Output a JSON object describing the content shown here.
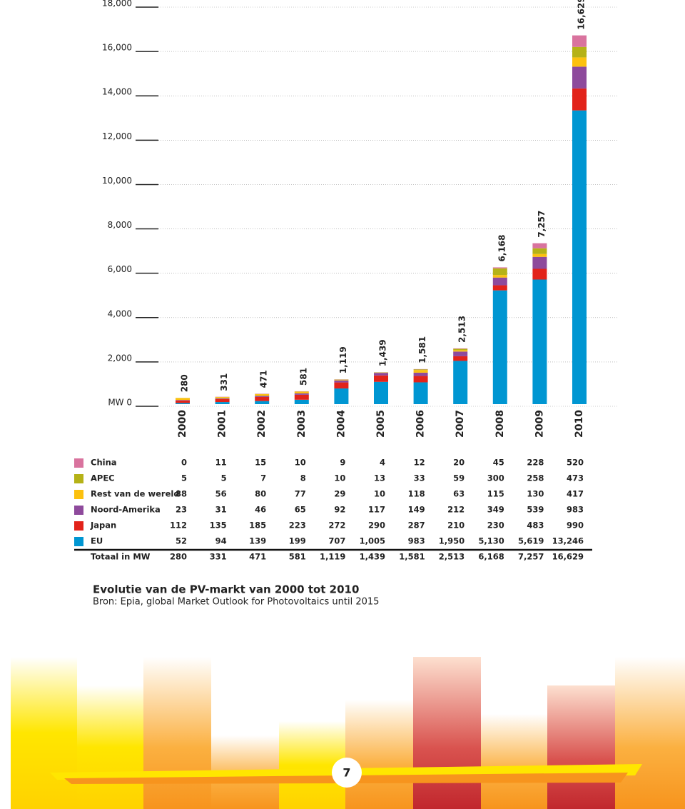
{
  "chart_data": {
    "type": "stacked-bar",
    "title": "Evolutie van de PV-markt van 2000 tot 2010",
    "subtitle": "Bron: Epia, global Market Outlook for Photovoltaics until 2015",
    "categories": [
      "2000",
      "2001",
      "2002",
      "2003",
      "2004",
      "2005",
      "2006",
      "2007",
      "2008",
      "2009",
      "2010"
    ],
    "series": [
      {
        "name": "EU",
        "color": "#0096d2",
        "values": [
          52,
          94,
          139,
          199,
          707,
          1005,
          983,
          1950,
          5130,
          5619,
          13246
        ],
        "value_labels": [
          "52",
          "94",
          "139",
          "199",
          "707",
          "1,005",
          "983",
          "1,950",
          "5,130",
          "5,619",
          "13,246"
        ]
      },
      {
        "name": "Japan",
        "color": "#e2231a",
        "values": [
          112,
          135,
          185,
          223,
          272,
          290,
          287,
          210,
          230,
          483,
          990
        ]
      },
      {
        "name": "Noord-Amerika",
        "color": "#8e4a9c",
        "values": [
          23,
          31,
          46,
          65,
          92,
          117,
          149,
          212,
          349,
          539,
          983
        ]
      },
      {
        "name": "Rest van de wereld",
        "color": "#fcc10f",
        "values": [
          88,
          56,
          80,
          77,
          29,
          10,
          118,
          63,
          115,
          130,
          417
        ]
      },
      {
        "name": "APEC",
        "color": "#b5b217",
        "values": [
          5,
          5,
          7,
          8,
          10,
          13,
          33,
          59,
          300,
          258,
          473
        ]
      },
      {
        "name": "China",
        "color": "#d9739e",
        "values": [
          0,
          11,
          15,
          10,
          9,
          4,
          12,
          20,
          45,
          228,
          520
        ]
      }
    ],
    "totals": {
      "name": "Totaal in MW",
      "values": [
        280,
        331,
        471,
        581,
        1119,
        1439,
        1581,
        2513,
        6168,
        7257,
        16629
      ],
      "value_labels": [
        "280",
        "331",
        "471",
        "581",
        "1,119",
        "1,439",
        "1,581",
        "2,513",
        "6,168",
        "7,257",
        "16,629"
      ]
    },
    "ylim": [
      0,
      18000
    ],
    "yticks": [
      {
        "value": 0,
        "label": "MW 0"
      },
      {
        "value": 2000,
        "label": "2,000"
      },
      {
        "value": 4000,
        "label": "4,000"
      },
      {
        "value": 6000,
        "label": "6,000"
      },
      {
        "value": 8000,
        "label": "8,000"
      },
      {
        "value": 10000,
        "label": "10,000"
      },
      {
        "value": 12000,
        "label": "12,000"
      },
      {
        "value": 14000,
        "label": "14,000"
      },
      {
        "value": 16000,
        "label": "16,000"
      },
      {
        "value": 18000,
        "label": "18,000"
      }
    ],
    "grid": true
  },
  "page_number": "7"
}
